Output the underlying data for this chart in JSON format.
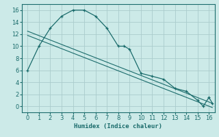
{
  "xlabel": "Humidex (Indice chaleur)",
  "background_color": "#cceae8",
  "grid_color": "#aacccc",
  "line_color": "#1a6b6b",
  "xlim": [
    -0.5,
    16.5
  ],
  "ylim": [
    -1,
    17
  ],
  "xticks": [
    0,
    1,
    2,
    3,
    4,
    5,
    6,
    7,
    8,
    9,
    10,
    11,
    12,
    13,
    14,
    15,
    16
  ],
  "yticks": [
    0,
    2,
    4,
    6,
    8,
    10,
    12,
    14,
    16
  ],
  "curve_x": [
    0,
    1,
    2,
    3,
    4,
    5,
    6,
    7,
    8,
    8.5,
    9,
    10,
    11,
    12,
    13,
    14,
    15,
    15.5,
    16,
    16.3
  ],
  "curve_y": [
    6,
    10,
    13,
    15,
    16,
    16,
    15,
    13,
    10,
    10,
    9.5,
    5.5,
    5,
    4.5,
    3,
    2.5,
    1,
    0,
    1.5,
    0.5
  ],
  "line1_x": [
    0,
    16.3
  ],
  "line1_y": [
    12.5,
    0.5
  ],
  "line2_x": [
    0,
    16.3
  ],
  "line2_y": [
    11.8,
    -0.2
  ]
}
